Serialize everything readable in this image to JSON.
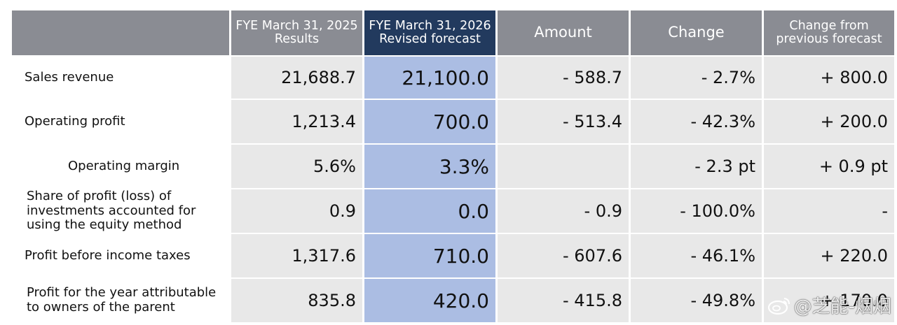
{
  "table": {
    "headers": [
      "",
      "FYE March 31, 2025\nResults",
      "FYE March 31, 2026\nRevised forecast",
      "Amount",
      "Change",
      "Change from\nprevious forecast"
    ],
    "header_lines": [
      [],
      [
        "FYE March 31, 2025",
        "Results"
      ],
      [
        "FYE March 31, 2026",
        "Revised forecast"
      ],
      [
        "Amount"
      ],
      [
        "Change"
      ],
      [
        "Change from",
        "previous forecast"
      ]
    ],
    "rows": [
      {
        "label": "Sales revenue",
        "values": [
          "21,688.7",
          "21,100.0",
          "- 588.7",
          "- 2.7%",
          "+ 800.0"
        ]
      },
      {
        "label": "Operating profit",
        "values": [
          "1,213.4",
          "700.0",
          "- 513.4",
          "- 42.3%",
          "+ 200.0"
        ]
      },
      {
        "label": "Operating margin",
        "values": [
          "5.6%",
          "3.3%",
          "",
          "- 2.3 pt",
          "+ 0.9 pt"
        ]
      },
      {
        "label": "Share of profit (loss) of investments accounted for using the equity method",
        "values": [
          "0.9",
          "0.0",
          "- 0.9",
          "- 100.0%",
          "-"
        ]
      },
      {
        "label": "Profit before income taxes",
        "values": [
          "1,317.6",
          "710.0",
          "- 607.6",
          "- 46.1%",
          "+ 220.0"
        ]
      },
      {
        "label": "Profit for the year attributable to owners of the parent",
        "values": [
          "835.8",
          "420.0",
          "- 415.8",
          "- 49.8%",
          "+ 170.0"
        ]
      }
    ],
    "colors": {
      "header": "#8a8c93",
      "header_selected": "#223a5e",
      "cell": "#e8e8e8",
      "cell_selected": "#abbde3"
    }
  },
  "watermark": {
    "text": "@芝能-烟烟",
    "icon": "weibo-logo-icon"
  }
}
